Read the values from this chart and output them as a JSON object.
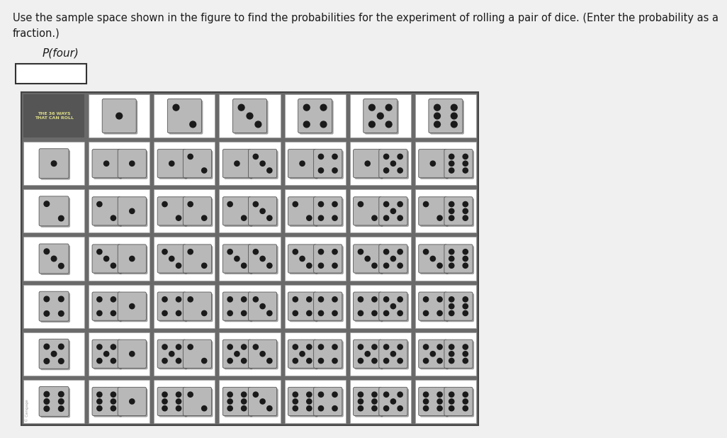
{
  "title_line1": "Use the sample space shown in the figure to find the probabilities for the experiment of rolling a pair of dice. (Enter the probability as a",
  "title_line2": "fraction.)",
  "label_text": "P(four)",
  "page_bg": "#f0f0f0",
  "grid_bg": "#6a6a6a",
  "header_label_text": "THE 36 WAYS\nTHAT CAN ROLL",
  "grid_rows": 7,
  "grid_cols": 7,
  "title_fontsize": 10.5,
  "label_fontsize": 11
}
